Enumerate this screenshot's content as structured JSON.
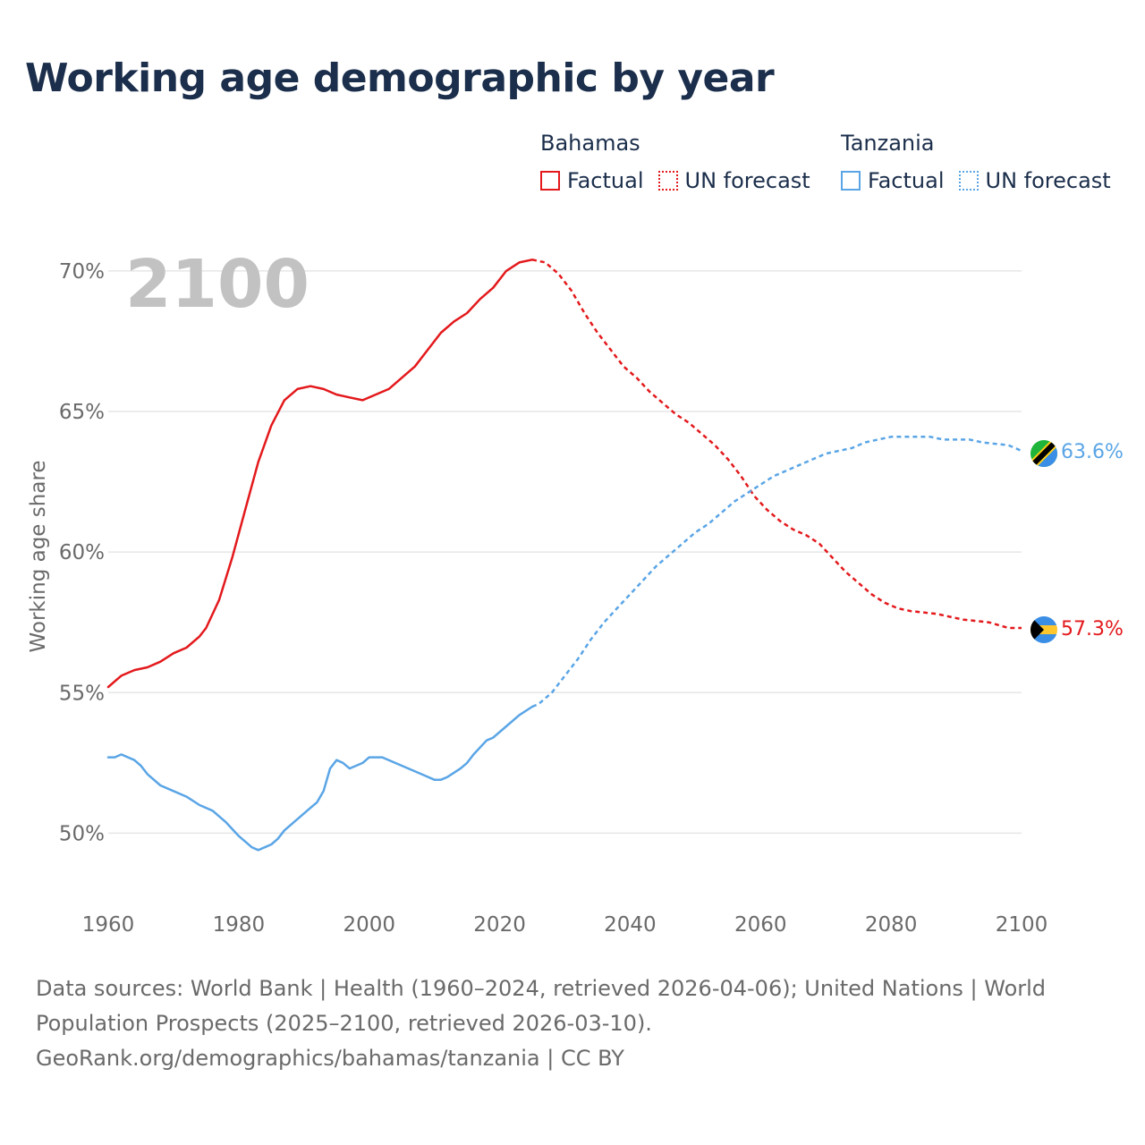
{
  "title": "Working age demographic by year",
  "legend": {
    "groups": [
      {
        "name": "Bahamas",
        "factual": "Factual",
        "forecast": "UN forecast",
        "color": "#e3191c"
      },
      {
        "name": "Tanzania",
        "factual": "Factual",
        "forecast": "UN forecast",
        "color": "#5aa5e6"
      }
    ]
  },
  "chart_data": {
    "type": "line",
    "title": "Working age demographic by year",
    "ylabel": "Working age share",
    "xlabel": "",
    "xlim": [
      1960,
      2100
    ],
    "ylim": [
      47.5,
      72
    ],
    "x_ticks": [
      1960,
      1980,
      2000,
      2020,
      2040,
      2060,
      2080,
      2100
    ],
    "x_tick_labels": [
      "1960",
      "1980",
      "2000",
      "2020",
      "2040",
      "2060",
      "2080",
      "2100"
    ],
    "y_ticks": [
      50,
      55,
      60,
      65,
      70
    ],
    "y_tick_labels": [
      "50%",
      "55%",
      "60%",
      "65%",
      "70%"
    ],
    "grid": true,
    "year_label": "2100",
    "forecast_start": 2025,
    "series": [
      {
        "name": "Bahamas",
        "color": "#e3191c",
        "end_label": "57.3%",
        "points": [
          [
            1960,
            55.2
          ],
          [
            1962,
            55.6
          ],
          [
            1964,
            55.8
          ],
          [
            1966,
            55.9
          ],
          [
            1968,
            56.1
          ],
          [
            1970,
            56.4
          ],
          [
            1972,
            56.6
          ],
          [
            1974,
            57.0
          ],
          [
            1975,
            57.3
          ],
          [
            1977,
            58.3
          ],
          [
            1979,
            59.8
          ],
          [
            1981,
            61.5
          ],
          [
            1983,
            63.2
          ],
          [
            1985,
            64.5
          ],
          [
            1987,
            65.4
          ],
          [
            1989,
            65.8
          ],
          [
            1991,
            65.9
          ],
          [
            1993,
            65.8
          ],
          [
            1995,
            65.6
          ],
          [
            1997,
            65.5
          ],
          [
            1999,
            65.4
          ],
          [
            2001,
            65.6
          ],
          [
            2003,
            65.8
          ],
          [
            2005,
            66.2
          ],
          [
            2007,
            66.6
          ],
          [
            2009,
            67.2
          ],
          [
            2011,
            67.8
          ],
          [
            2013,
            68.2
          ],
          [
            2015,
            68.5
          ],
          [
            2017,
            69.0
          ],
          [
            2019,
            69.4
          ],
          [
            2021,
            70.0
          ],
          [
            2023,
            70.3
          ],
          [
            2025,
            70.4
          ],
          [
            2027,
            70.3
          ],
          [
            2029,
            69.9
          ],
          [
            2031,
            69.3
          ],
          [
            2033,
            68.5
          ],
          [
            2035,
            67.8
          ],
          [
            2037,
            67.2
          ],
          [
            2039,
            66.6
          ],
          [
            2041,
            66.2
          ],
          [
            2043,
            65.7
          ],
          [
            2045,
            65.3
          ],
          [
            2047,
            64.9
          ],
          [
            2049,
            64.6
          ],
          [
            2051,
            64.2
          ],
          [
            2053,
            63.8
          ],
          [
            2055,
            63.3
          ],
          [
            2057,
            62.7
          ],
          [
            2059,
            62.0
          ],
          [
            2061,
            61.5
          ],
          [
            2063,
            61.1
          ],
          [
            2065,
            60.8
          ],
          [
            2067,
            60.6
          ],
          [
            2069,
            60.3
          ],
          [
            2071,
            59.8
          ],
          [
            2073,
            59.3
          ],
          [
            2075,
            58.9
          ],
          [
            2077,
            58.5
          ],
          [
            2079,
            58.2
          ],
          [
            2081,
            58.0
          ],
          [
            2083,
            57.9
          ],
          [
            2087,
            57.8
          ],
          [
            2091,
            57.6
          ],
          [
            2095,
            57.5
          ],
          [
            2098,
            57.3
          ],
          [
            2100,
            57.3
          ]
        ]
      },
      {
        "name": "Tanzania",
        "color": "#5aa5e6",
        "end_label": "63.6%",
        "points": [
          [
            1960,
            52.7
          ],
          [
            1961,
            52.7
          ],
          [
            1962,
            52.8
          ],
          [
            1964,
            52.6
          ],
          [
            1965,
            52.4
          ],
          [
            1966,
            52.1
          ],
          [
            1968,
            51.7
          ],
          [
            1970,
            51.5
          ],
          [
            1972,
            51.3
          ],
          [
            1974,
            51.0
          ],
          [
            1976,
            50.8
          ],
          [
            1978,
            50.4
          ],
          [
            1980,
            49.9
          ],
          [
            1982,
            49.5
          ],
          [
            1983,
            49.4
          ],
          [
            1985,
            49.6
          ],
          [
            1986,
            49.8
          ],
          [
            1987,
            50.1
          ],
          [
            1989,
            50.5
          ],
          [
            1991,
            50.9
          ],
          [
            1992,
            51.1
          ],
          [
            1993,
            51.5
          ],
          [
            1994,
            52.3
          ],
          [
            1995,
            52.6
          ],
          [
            1996,
            52.5
          ],
          [
            1997,
            52.3
          ],
          [
            1999,
            52.5
          ],
          [
            2000,
            52.7
          ],
          [
            2002,
            52.7
          ],
          [
            2004,
            52.5
          ],
          [
            2006,
            52.3
          ],
          [
            2008,
            52.1
          ],
          [
            2010,
            51.9
          ],
          [
            2011,
            51.9
          ],
          [
            2012,
            52.0
          ],
          [
            2014,
            52.3
          ],
          [
            2015,
            52.5
          ],
          [
            2016,
            52.8
          ],
          [
            2018,
            53.3
          ],
          [
            2019,
            53.4
          ],
          [
            2021,
            53.8
          ],
          [
            2023,
            54.2
          ],
          [
            2025,
            54.5
          ],
          [
            2026,
            54.6
          ],
          [
            2028,
            55.0
          ],
          [
            2030,
            55.6
          ],
          [
            2032,
            56.2
          ],
          [
            2034,
            56.9
          ],
          [
            2036,
            57.5
          ],
          [
            2038,
            58.0
          ],
          [
            2040,
            58.5
          ],
          [
            2042,
            59.0
          ],
          [
            2044,
            59.5
          ],
          [
            2046,
            59.9
          ],
          [
            2048,
            60.3
          ],
          [
            2050,
            60.7
          ],
          [
            2052,
            61.0
          ],
          [
            2054,
            61.4
          ],
          [
            2056,
            61.8
          ],
          [
            2058,
            62.1
          ],
          [
            2060,
            62.4
          ],
          [
            2062,
            62.7
          ],
          [
            2064,
            62.9
          ],
          [
            2066,
            63.1
          ],
          [
            2068,
            63.3
          ],
          [
            2070,
            63.5
          ],
          [
            2072,
            63.6
          ],
          [
            2074,
            63.7
          ],
          [
            2076,
            63.9
          ],
          [
            2078,
            64.0
          ],
          [
            2080,
            64.1
          ],
          [
            2082,
            64.1
          ],
          [
            2086,
            64.1
          ],
          [
            2088,
            64.0
          ],
          [
            2092,
            64.0
          ],
          [
            2094,
            63.9
          ],
          [
            2098,
            63.8
          ],
          [
            2100,
            63.6
          ]
        ]
      }
    ]
  },
  "footer": {
    "sources": "Data sources: World Bank | Health (1960–2024, retrieved 2026-04-06); United Nations | World Population Prospects (2025–2100, retrieved 2026-03-10).",
    "link": "GeoRank.org/demographics/bahamas/tanzania | CC BY"
  }
}
